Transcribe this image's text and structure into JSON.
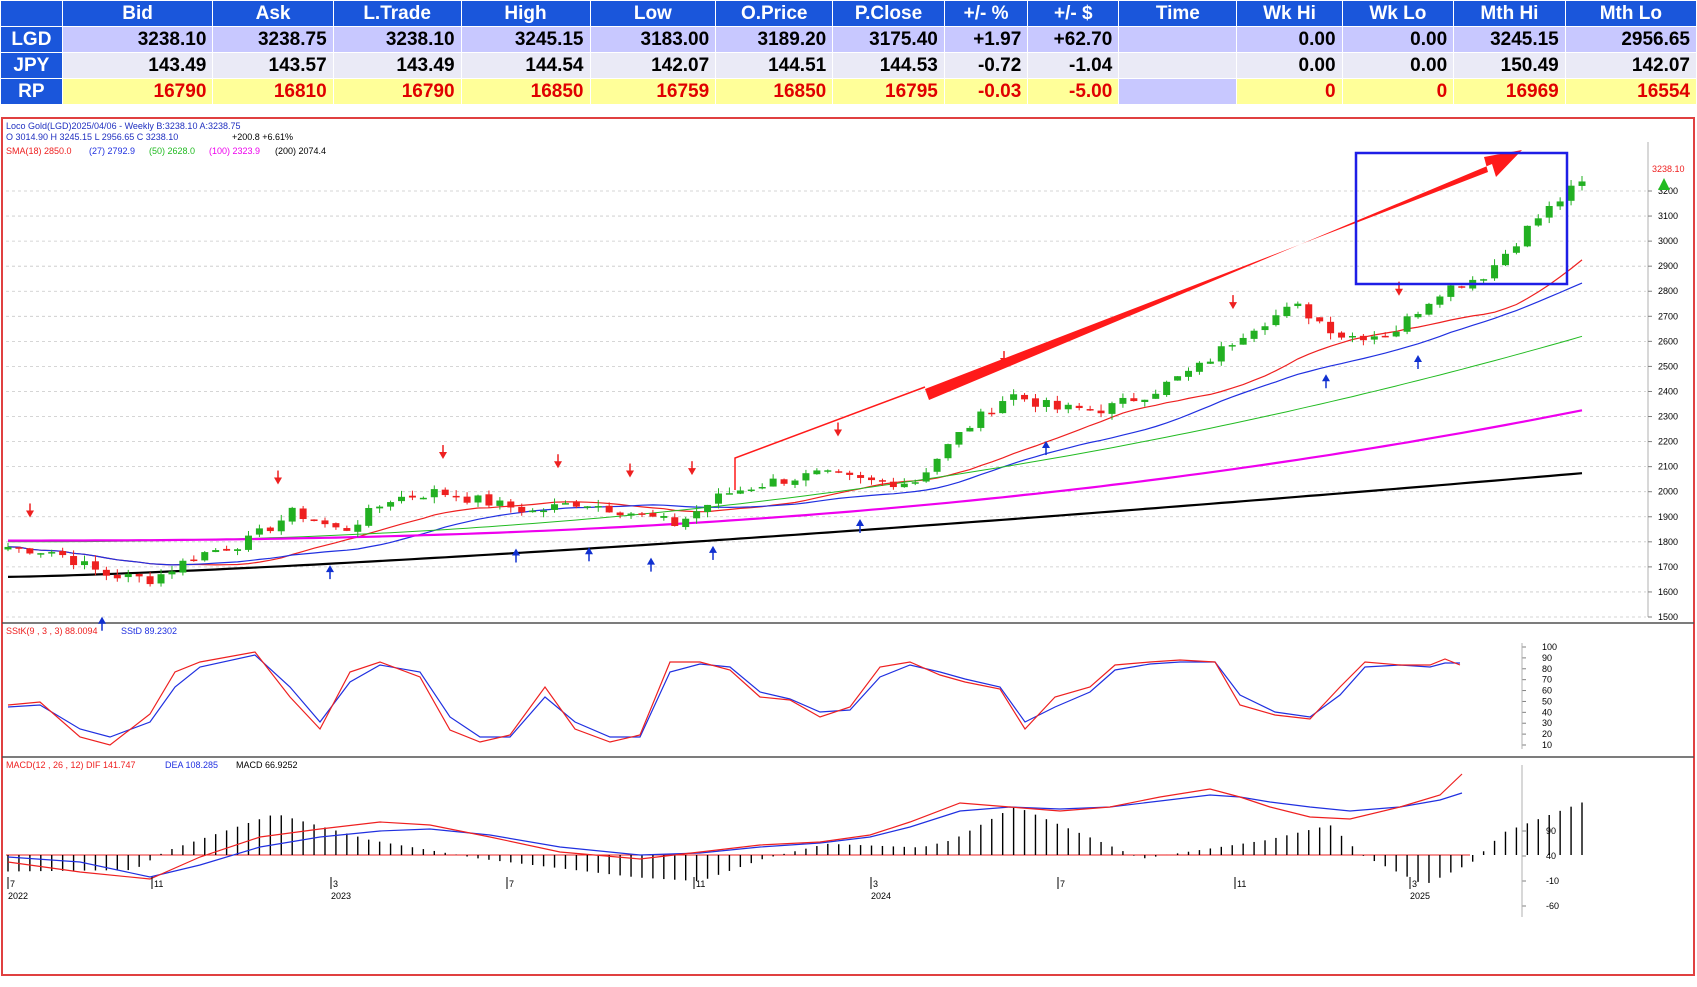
{
  "quote_table": {
    "columns": [
      "Bid",
      "Ask",
      "L.Trade",
      "High",
      "Low",
      "O.Price",
      "P.Close",
      "+/- %",
      "+/- $",
      "Time",
      "Wk Hi",
      "Wk Lo",
      "Mth Hi",
      "Mth Lo"
    ],
    "rows": [
      {
        "label": "LGD",
        "values": [
          "3238.10",
          "3238.75",
          "3238.10",
          "3245.15",
          "3183.00",
          "3189.20",
          "3175.40",
          "+1.97",
          "+62.70",
          "",
          "0.00",
          "0.00",
          "3245.15",
          "2956.65"
        ]
      },
      {
        "label": "JPY",
        "values": [
          "143.49",
          "143.57",
          "143.49",
          "144.54",
          "142.07",
          "144.51",
          "144.53",
          "-0.72",
          "-1.04",
          "",
          "0.00",
          "0.00",
          "150.49",
          "142.07"
        ]
      },
      {
        "label": "RP",
        "values": [
          "16790",
          "16810",
          "16790",
          "16850",
          "16759",
          "16850",
          "16795",
          "-0.03",
          "-5.00",
          "",
          "0",
          "0",
          "16969",
          "16554"
        ]
      }
    ]
  },
  "price_panel": {
    "header_line1": "Loco Gold(LGD)2025/04/06  - Weekly B:3238.10 A:3238.75",
    "header_line2_ohlc": "O 3014.90 H 3245.15 L 2956.65 C 3238.10",
    "header_line2_change": "+200.8  +6.61%",
    "sma_label": "SMA(18) 2850.0",
    "sma_27": "(27) 2792.9",
    "sma_50": "(50) 2628.0",
    "sma_100": "(100) 2323.9",
    "sma_200": "(200) 2074.4",
    "last_price_label": "3238.10",
    "y_ticks": [
      "3200",
      "3100",
      "3000",
      "2900",
      "2800",
      "2700",
      "2600",
      "2500",
      "2400",
      "2300",
      "2200",
      "2100",
      "2000",
      "1900",
      "1800",
      "1700",
      "1600",
      "1500"
    ]
  },
  "stoch_panel": {
    "label_k": "SStK(9 , 3 , 3) 88.0094",
    "label_d": "SStD 89.2302",
    "y_ticks": [
      "100",
      "90",
      "80",
      "70",
      "60",
      "50",
      "40",
      "30",
      "20",
      "10"
    ]
  },
  "macd_panel": {
    "label_main": "MACD(12 , 26 , 12) DIF 141.747",
    "label_dea": "DEA 108.285",
    "label_macd": "MACD 66.9252",
    "y_ticks": [
      "90",
      "40",
      "-10",
      "-60"
    ]
  },
  "x_axis": {
    "month_ticks": [
      "7",
      "11",
      "3",
      "7",
      "11",
      "3",
      "7",
      "11",
      "3"
    ],
    "year_labels": [
      "2022",
      "2023",
      "2024",
      "2025"
    ]
  },
  "colors": {
    "up_candle": "#22b022",
    "down_candle": "#ee2020",
    "sma18": "#ee2020",
    "sma27": "#2030e0",
    "sma50": "#22bb22",
    "sma100": "#ee00ee",
    "sma200": "#000000",
    "annotation_arrow": "#ff1a1a",
    "highlight_box": "#1e1ee6"
  },
  "chart_data": {
    "type": "candlestick",
    "title": "Loco Gold(LGD)2025/04/06 - Weekly",
    "x_range": [
      "2022-07",
      "2025-04"
    ],
    "ylim": [
      1500,
      3250
    ],
    "close_path_approx": [
      [
        "2022-07",
        1780
      ],
      [
        "2022-08",
        1760
      ],
      [
        "2022-09",
        1670
      ],
      [
        "2022-10",
        1650
      ],
      [
        "2022-11",
        1750
      ],
      [
        "2022-12",
        1800
      ],
      [
        "2023-01",
        1920
      ],
      [
        "2023-02",
        1840
      ],
      [
        "2023-03",
        1970
      ],
      [
        "2023-04",
        2000
      ],
      [
        "2023-05",
        1960
      ],
      [
        "2023-06",
        1920
      ],
      [
        "2023-07",
        1960
      ],
      [
        "2023-08",
        1920
      ],
      [
        "2023-09",
        1870
      ],
      [
        "2023-10",
        1990
      ],
      [
        "2023-11",
        2040
      ],
      [
        "2023-12",
        2070
      ],
      [
        "2024-01",
        2040
      ],
      [
        "2024-02",
        2040
      ],
      [
        "2024-03",
        2240
      ],
      [
        "2024-04",
        2390
      ],
      [
        "2024-05",
        2330
      ],
      [
        "2024-06",
        2330
      ],
      [
        "2024-07",
        2400
      ],
      [
        "2024-08",
        2500
      ],
      [
        "2024-09",
        2650
      ],
      [
        "2024-10",
        2740
      ],
      [
        "2024-11",
        2620
      ],
      [
        "2024-12",
        2630
      ],
      [
        "2025-01",
        2800
      ],
      [
        "2025-02",
        2870
      ],
      [
        "2025-03",
        3080
      ],
      [
        "2025-04",
        3238.1
      ]
    ],
    "indicators": [
      "SMA(18)",
      "SMA(27)",
      "SMA(50)",
      "SMA(100)",
      "SMA(200)",
      "SStK(9,3,3)",
      "SStD",
      "MACD(12,26,12)"
    ]
  }
}
